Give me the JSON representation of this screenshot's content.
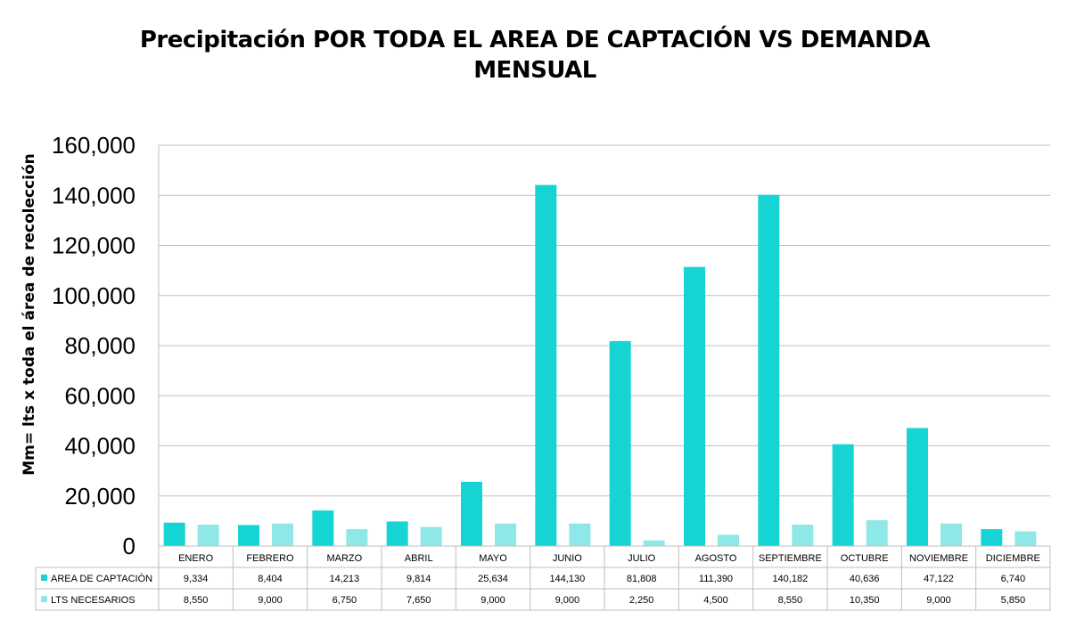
{
  "chart_data": {
    "type": "bar",
    "title": "Precipitación POR TODA EL AREA DE CAPTACIÓN VS  DEMANDA MENSUAL",
    "ylabel": "Mm= lts x toda el área de recolección",
    "xlabel": "",
    "ylim": [
      0,
      160000
    ],
    "yticks": [
      0,
      20000,
      40000,
      60000,
      80000,
      100000,
      120000,
      140000,
      160000
    ],
    "ytick_labels": [
      "0",
      "20,000",
      "40,000",
      "60,000",
      "80,000",
      "100,000",
      "120,000",
      "140,000",
      "160,000"
    ],
    "grid": true,
    "legend": "data-table",
    "categories": [
      "ENERO",
      "FEBRERO",
      "MARZO",
      "ABRIL",
      "MAYO",
      "JUNIO",
      "JULIO",
      "AGOSTO",
      "SEPTIEMBRE",
      "OCTUBRE",
      "NOVIEMBRE",
      "DICIEMBRE"
    ],
    "series": [
      {
        "name": "AREA DE CAPTACIÒN",
        "color": "#17d4d4",
        "values": [
          9334,
          8404,
          14213,
          9814,
          25634,
          144130,
          81808,
          111390,
          140182,
          40636,
          47122,
          6740
        ],
        "labels": [
          "9,334",
          "8,404",
          "14,213",
          "9,814",
          "25,634",
          "144,130",
          "81,808",
          "111,390",
          "140,182",
          "40,636",
          "47,122",
          "6,740"
        ]
      },
      {
        "name": "LTS NECESARIOS",
        "color": "#8fe8e8",
        "values": [
          8550,
          9000,
          6750,
          7650,
          9000,
          9000,
          2250,
          4500,
          8550,
          10350,
          9000,
          5850
        ],
        "labels": [
          "8,550",
          "9,000",
          "6,750",
          "7,650",
          "9,000",
          "9,000",
          "2,250",
          "4,500",
          "8,550",
          "10,350",
          "9,000",
          "5,850"
        ]
      }
    ]
  }
}
